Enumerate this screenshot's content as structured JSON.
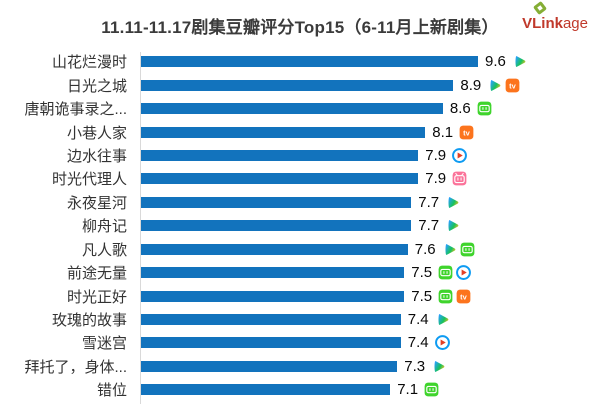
{
  "title": "11.11-11.17剧集豆瓣评分Top15（6-11月上新剧集）",
  "logo": {
    "text_bold": "VLink",
    "text_light": "age",
    "color": "#c0392b",
    "diamond_color": "#85ae35"
  },
  "colors": {
    "bar": "#1273bd",
    "axis_line": "#d9d9d9",
    "label_text": "#333333",
    "value_text": "#0a0a0a",
    "tencent_blue": "#2aa0ff",
    "tencent_green": "#17c25c",
    "tencent_yellow": "#ffc21c",
    "mango_orange": "#fc741d",
    "iqiyi_green": "#3fd42c",
    "youku_ring_blue": "#0d9bf2",
    "youku_arrow_red": "#e23f25",
    "bilibili_pink": "#fb7299"
  },
  "platform_labels": {
    "tencent-video": "腾讯视频",
    "mango-tv": "芒果TV",
    "iqiyi": "爱奇艺",
    "youku": "优酷",
    "bilibili": "哔哩哔哩"
  },
  "chart_data": {
    "type": "bar",
    "orientation": "horizontal",
    "title": "11.11-11.17剧集豆瓣评分Top15（6-11月上新剧集）",
    "xlim": [
      0,
      9.6
    ],
    "grid": false,
    "legend": false,
    "categories": [
      "山花烂漫时",
      "日光之城",
      "唐朝诡事录之...",
      "小巷人家",
      "边水往事",
      "时光代理人",
      "永夜星河",
      "柳舟记",
      "凡人歌",
      "前途无量",
      "时光正好",
      "玫瑰的故事",
      "雪迷宫",
      "拜托了，身体...",
      "错位"
    ],
    "values": [
      9.6,
      8.9,
      8.6,
      8.1,
      7.9,
      7.9,
      7.7,
      7.7,
      7.6,
      7.5,
      7.5,
      7.4,
      7.4,
      7.3,
      7.1
    ],
    "platforms": [
      [
        "tencent-video"
      ],
      [
        "tencent-video",
        "mango-tv"
      ],
      [
        "iqiyi"
      ],
      [
        "mango-tv"
      ],
      [
        "youku"
      ],
      [
        "bilibili"
      ],
      [
        "tencent-video"
      ],
      [
        "tencent-video"
      ],
      [
        "tencent-video",
        "iqiyi"
      ],
      [
        "iqiyi",
        "youku"
      ],
      [
        "iqiyi",
        "mango-tv"
      ],
      [
        "tencent-video"
      ],
      [
        "youku"
      ],
      [
        "tencent-video"
      ],
      [
        "iqiyi"
      ]
    ]
  }
}
